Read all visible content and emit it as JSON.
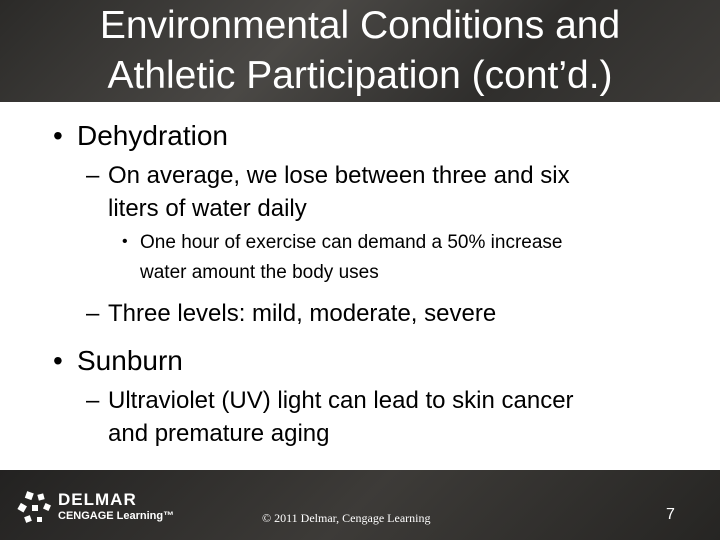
{
  "header": {
    "title_lines": [
      "Environmental Conditions and",
      "Athletic Participation (cont’d.)"
    ]
  },
  "body": {
    "items": [
      {
        "level": 1,
        "lines": [
          "Dehydration"
        ]
      },
      {
        "level": 2,
        "lines": [
          "On average, we lose between three and six",
          "liters of water daily"
        ]
      },
      {
        "level": 3,
        "lines": [
          "One hour of exercise can demand a 50% increase",
          "water amount the body uses"
        ]
      },
      {
        "level": 2,
        "lines": [
          "Three levels: mild, moderate, severe"
        ]
      },
      {
        "level": 1,
        "lines": [
          "Sunburn"
        ]
      },
      {
        "level": 2,
        "lines": [
          "Ultraviolet (UV) light can lead to skin cancer",
          "and premature aging"
        ]
      }
    ]
  },
  "footer": {
    "logo_top": "DELMAR",
    "logo_bottom": "CENGAGE Learning™",
    "copyright": "© 2011 Delmar, Cengage Learning",
    "page_number": "7"
  }
}
